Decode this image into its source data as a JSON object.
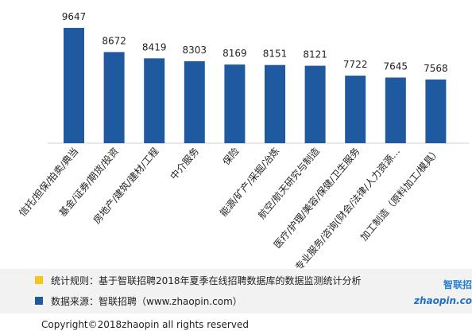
{
  "chart_data": {
    "type": "bar",
    "categories": [
      "信托/担保/拍卖/典当",
      "基金/证券/期货/投资",
      "房地产/建筑/建材/工程",
      "中介服务",
      "保险",
      "能源/矿产/采掘/冶炼",
      "航空/航天研究与制造",
      "医疗/护理/美容/保健/卫生服务",
      "专业服务/咨询(财会/法律/人力资源…",
      "加工制造（原料加工/模具）"
    ],
    "values": [
      9647,
      8672,
      8419,
      8303,
      8169,
      8151,
      8121,
      7722,
      7645,
      7568
    ],
    "color": "#1f5aa0",
    "ylim": [
      5000,
      10000
    ]
  },
  "footer": {
    "rules": "统计规则：基于智联招聘2018年夏季在线招聘数据库的数据监测统计分析",
    "source": "数据来源：智联招聘（www.zhaopin.com）",
    "logo_cn": "智联招",
    "logo_en": "zhaopin.co",
    "copyright": "Copyright©2018zhaopin all rights reserved"
  }
}
